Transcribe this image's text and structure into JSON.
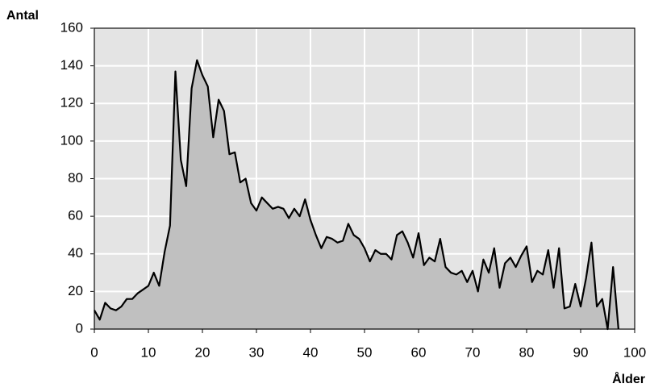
{
  "chart_data": {
    "type": "area",
    "ylabel": "Antal",
    "xlabel": "Ålder",
    "x": [
      0,
      1,
      2,
      3,
      4,
      5,
      6,
      7,
      8,
      9,
      10,
      11,
      12,
      13,
      14,
      15,
      16,
      17,
      18,
      19,
      20,
      21,
      22,
      23,
      24,
      25,
      26,
      27,
      28,
      29,
      30,
      31,
      32,
      33,
      34,
      35,
      36,
      37,
      38,
      39,
      40,
      41,
      42,
      43,
      44,
      45,
      46,
      47,
      48,
      49,
      50,
      51,
      52,
      53,
      54,
      55,
      56,
      57,
      58,
      59,
      60,
      61,
      62,
      63,
      64,
      65,
      66,
      67,
      68,
      69,
      70,
      71,
      72,
      73,
      74,
      75,
      76,
      77,
      78,
      79,
      80,
      81,
      82,
      83,
      84,
      85,
      86,
      87,
      88,
      89,
      90,
      91,
      92,
      93,
      94,
      95,
      96,
      97
    ],
    "values": [
      10,
      5,
      14,
      11,
      10,
      12,
      16,
      16,
      19,
      21,
      23,
      30,
      23,
      41,
      55,
      137,
      90,
      76,
      128,
      143,
      135,
      129,
      102,
      122,
      116,
      93,
      94,
      78,
      80,
      67,
      63,
      70,
      67,
      64,
      65,
      64,
      59,
      64,
      60,
      69,
      58,
      50,
      43,
      49,
      48,
      46,
      47,
      56,
      50,
      48,
      43,
      36,
      42,
      40,
      40,
      37,
      50,
      52,
      46,
      38,
      51,
      34,
      38,
      36,
      48,
      33,
      30,
      29,
      31,
      25,
      31,
      20,
      37,
      30,
      43,
      22,
      35,
      38,
      33,
      39,
      44,
      25,
      31,
      29,
      42,
      22,
      43,
      11,
      12,
      24,
      12,
      27,
      46,
      12,
      16,
      0,
      33,
      0
    ],
    "color": "#c0c0c0",
    "line_color": "#000000",
    "background": "#e4e4e4",
    "xlim": [
      0,
      100
    ],
    "xticks": [
      0,
      10,
      20,
      30,
      40,
      50,
      60,
      70,
      80,
      90,
      100
    ],
    "ylim": [
      0,
      160
    ],
    "yticks": [
      0,
      20,
      40,
      60,
      80,
      100,
      120,
      140,
      160
    ],
    "grid": true
  }
}
